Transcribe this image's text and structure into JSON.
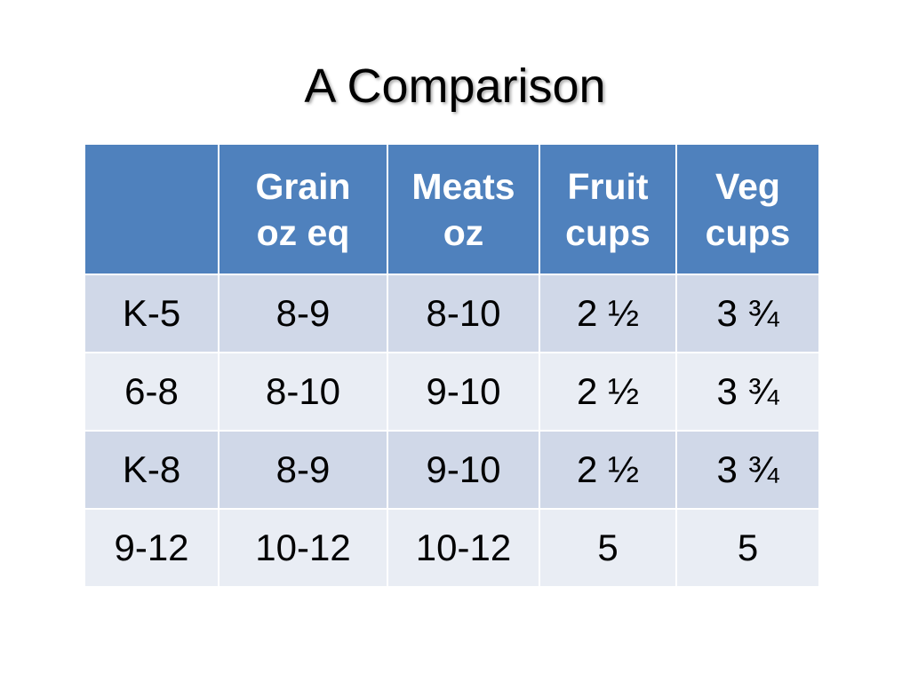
{
  "slide": {
    "title": "A Comparison"
  },
  "table": {
    "header": [
      {
        "line1": "",
        "line2": ""
      },
      {
        "line1": "Grain",
        "line2": "oz eq"
      },
      {
        "line1": "Meats",
        "line2": "oz"
      },
      {
        "line1": "Fruit",
        "line2": "cups"
      },
      {
        "line1": "Veg",
        "line2": "cups"
      }
    ],
    "rows": [
      [
        "K-5",
        "8-9",
        "8-10",
        "2 ½",
        "3 ¾"
      ],
      [
        "6-8",
        "8-10",
        "9-10",
        "2 ½",
        "3 ¾"
      ],
      [
        "K-8",
        "8-9",
        "9-10",
        "2 ½",
        "3 ¾"
      ],
      [
        "9-12",
        "10-12",
        "10-12",
        "5",
        "5"
      ]
    ]
  },
  "colors": {
    "header_fill": "#4f81bd",
    "band_dark": "#d0d8e8",
    "band_light": "#e9edf4"
  }
}
